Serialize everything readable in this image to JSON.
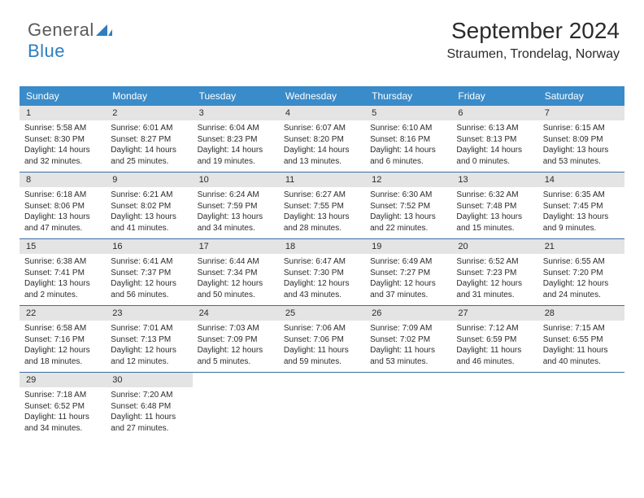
{
  "brand": {
    "part1": "General",
    "part2": "Blue"
  },
  "title": "September 2024",
  "location": "Straumen, Trondelag, Norway",
  "colors": {
    "header_bg": "#3a8bc9",
    "header_text": "#ffffff",
    "daynum_bg": "#e4e4e4",
    "rule": "#3a6ea5",
    "text": "#2b2b2b",
    "brand_blue": "#2d7dc0",
    "brand_gray": "#5a5a5a"
  },
  "weekdays": [
    "Sunday",
    "Monday",
    "Tuesday",
    "Wednesday",
    "Thursday",
    "Friday",
    "Saturday"
  ],
  "days": [
    {
      "n": "1",
      "sr": "5:58 AM",
      "ss": "8:30 PM",
      "dl": "14 hours and 32 minutes."
    },
    {
      "n": "2",
      "sr": "6:01 AM",
      "ss": "8:27 PM",
      "dl": "14 hours and 25 minutes."
    },
    {
      "n": "3",
      "sr": "6:04 AM",
      "ss": "8:23 PM",
      "dl": "14 hours and 19 minutes."
    },
    {
      "n": "4",
      "sr": "6:07 AM",
      "ss": "8:20 PM",
      "dl": "14 hours and 13 minutes."
    },
    {
      "n": "5",
      "sr": "6:10 AM",
      "ss": "8:16 PM",
      "dl": "14 hours and 6 minutes."
    },
    {
      "n": "6",
      "sr": "6:13 AM",
      "ss": "8:13 PM",
      "dl": "14 hours and 0 minutes."
    },
    {
      "n": "7",
      "sr": "6:15 AM",
      "ss": "8:09 PM",
      "dl": "13 hours and 53 minutes."
    },
    {
      "n": "8",
      "sr": "6:18 AM",
      "ss": "8:06 PM",
      "dl": "13 hours and 47 minutes."
    },
    {
      "n": "9",
      "sr": "6:21 AM",
      "ss": "8:02 PM",
      "dl": "13 hours and 41 minutes."
    },
    {
      "n": "10",
      "sr": "6:24 AM",
      "ss": "7:59 PM",
      "dl": "13 hours and 34 minutes."
    },
    {
      "n": "11",
      "sr": "6:27 AM",
      "ss": "7:55 PM",
      "dl": "13 hours and 28 minutes."
    },
    {
      "n": "12",
      "sr": "6:30 AM",
      "ss": "7:52 PM",
      "dl": "13 hours and 22 minutes."
    },
    {
      "n": "13",
      "sr": "6:32 AM",
      "ss": "7:48 PM",
      "dl": "13 hours and 15 minutes."
    },
    {
      "n": "14",
      "sr": "6:35 AM",
      "ss": "7:45 PM",
      "dl": "13 hours and 9 minutes."
    },
    {
      "n": "15",
      "sr": "6:38 AM",
      "ss": "7:41 PM",
      "dl": "13 hours and 2 minutes."
    },
    {
      "n": "16",
      "sr": "6:41 AM",
      "ss": "7:37 PM",
      "dl": "12 hours and 56 minutes."
    },
    {
      "n": "17",
      "sr": "6:44 AM",
      "ss": "7:34 PM",
      "dl": "12 hours and 50 minutes."
    },
    {
      "n": "18",
      "sr": "6:47 AM",
      "ss": "7:30 PM",
      "dl": "12 hours and 43 minutes."
    },
    {
      "n": "19",
      "sr": "6:49 AM",
      "ss": "7:27 PM",
      "dl": "12 hours and 37 minutes."
    },
    {
      "n": "20",
      "sr": "6:52 AM",
      "ss": "7:23 PM",
      "dl": "12 hours and 31 minutes."
    },
    {
      "n": "21",
      "sr": "6:55 AM",
      "ss": "7:20 PM",
      "dl": "12 hours and 24 minutes."
    },
    {
      "n": "22",
      "sr": "6:58 AM",
      "ss": "7:16 PM",
      "dl": "12 hours and 18 minutes."
    },
    {
      "n": "23",
      "sr": "7:01 AM",
      "ss": "7:13 PM",
      "dl": "12 hours and 12 minutes."
    },
    {
      "n": "24",
      "sr": "7:03 AM",
      "ss": "7:09 PM",
      "dl": "12 hours and 5 minutes."
    },
    {
      "n": "25",
      "sr": "7:06 AM",
      "ss": "7:06 PM",
      "dl": "11 hours and 59 minutes."
    },
    {
      "n": "26",
      "sr": "7:09 AM",
      "ss": "7:02 PM",
      "dl": "11 hours and 53 minutes."
    },
    {
      "n": "27",
      "sr": "7:12 AM",
      "ss": "6:59 PM",
      "dl": "11 hours and 46 minutes."
    },
    {
      "n": "28",
      "sr": "7:15 AM",
      "ss": "6:55 PM",
      "dl": "11 hours and 40 minutes."
    },
    {
      "n": "29",
      "sr": "7:18 AM",
      "ss": "6:52 PM",
      "dl": "11 hours and 34 minutes."
    },
    {
      "n": "30",
      "sr": "7:20 AM",
      "ss": "6:48 PM",
      "dl": "11 hours and 27 minutes."
    }
  ],
  "labels": {
    "sunrise": "Sunrise:",
    "sunset": "Sunset:",
    "daylight": "Daylight:"
  }
}
